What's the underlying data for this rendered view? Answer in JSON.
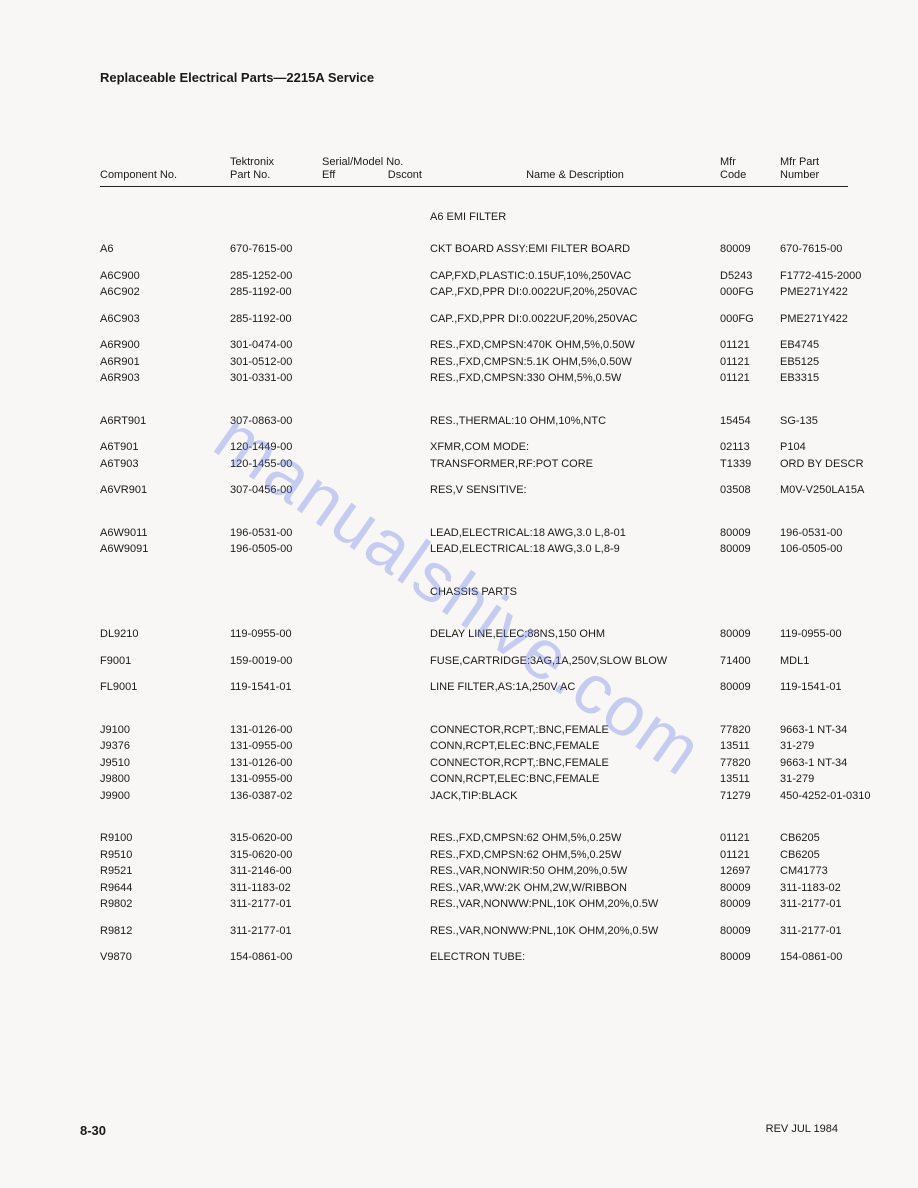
{
  "page": {
    "title": "Replaceable Electrical Parts—2215A Service",
    "page_number": "8-30",
    "revision": "REV JUL 1984",
    "watermark": "manualshive.com"
  },
  "headers": {
    "component": "Component No.",
    "tek_top": "Tektronix",
    "tek_bottom": "Part No.",
    "serial_top": "Serial/Model No.",
    "eff": "Eff",
    "dscont": "Dscont",
    "name": "Name & Description",
    "mfr_top": "Mfr",
    "mfr_bottom": "Code",
    "mpn": "Mfr Part Number"
  },
  "rows": [
    {
      "type": "spacer",
      "size": "md"
    },
    {
      "type": "section",
      "desc": "A6 EMI FILTER"
    },
    {
      "type": "spacer",
      "size": "md"
    },
    {
      "type": "part",
      "comp": "A6",
      "part": "670-7615-00",
      "desc": "CKT BOARD ASSY:EMI FILTER BOARD",
      "mfr": "80009",
      "mpn": "670-7615-00"
    },
    {
      "type": "spacer",
      "size": "sm"
    },
    {
      "type": "part",
      "comp": "A6C900",
      "part": "285-1252-00",
      "desc": "CAP,FXD,PLASTIC:0.15UF,10%,250VAC",
      "mfr": "D5243",
      "mpn": "F1772-415-2000"
    },
    {
      "type": "part",
      "comp": "A6C902",
      "part": "285-1192-00",
      "desc": "CAP.,FXD,PPR DI:0.0022UF,20%,250VAC",
      "mfr": "000FG",
      "mpn": "PME271Y422"
    },
    {
      "type": "spacer",
      "size": "sm"
    },
    {
      "type": "part",
      "comp": "A6C903",
      "part": "285-1192-00",
      "desc": "CAP.,FXD,PPR DI:0.0022UF,20%,250VAC",
      "mfr": "000FG",
      "mpn": "PME271Y422"
    },
    {
      "type": "spacer",
      "size": "sm"
    },
    {
      "type": "part",
      "comp": "A6R900",
      "part": "301-0474-00",
      "desc": "RES.,FXD,CMPSN:470K OHM,5%,0.50W",
      "mfr": "01121",
      "mpn": "EB4745"
    },
    {
      "type": "part",
      "comp": "A6R901",
      "part": "301-0512-00",
      "desc": "RES.,FXD,CMPSN:5.1K OHM,5%,0.50W",
      "mfr": "01121",
      "mpn": "EB5125"
    },
    {
      "type": "part",
      "comp": "A6R903",
      "part": "301-0331-00",
      "desc": "RES.,FXD,CMPSN:330 OHM,5%,0.5W",
      "mfr": "01121",
      "mpn": "EB3315"
    },
    {
      "type": "spacer",
      "size": "lg"
    },
    {
      "type": "part",
      "comp": "A6RT901",
      "part": "307-0863-00",
      "desc": "RES.,THERMAL:10 OHM,10%,NTC",
      "mfr": "15454",
      "mpn": "SG-135"
    },
    {
      "type": "spacer",
      "size": "sm"
    },
    {
      "type": "part",
      "comp": "A6T901",
      "part": "120-1449-00",
      "desc": "XFMR,COM MODE:",
      "mfr": "02113",
      "mpn": "P104"
    },
    {
      "type": "part",
      "comp": "A6T903",
      "part": "120-1455-00",
      "desc": "TRANSFORMER,RF:POT CORE",
      "mfr": "T1339",
      "mpn": "ORD BY DESCR"
    },
    {
      "type": "spacer",
      "size": "sm"
    },
    {
      "type": "part",
      "comp": "A6VR901",
      "part": "307-0456-00",
      "desc": "RES,V SENSITIVE:",
      "mfr": "03508",
      "mpn": "M0V-V250LA15A"
    },
    {
      "type": "spacer",
      "size": "lg"
    },
    {
      "type": "part",
      "comp": "A6W9011",
      "part": "196-0531-00",
      "desc": "LEAD,ELECTRICAL:18 AWG,3.0 L,8-01",
      "mfr": "80009",
      "mpn": "196-0531-00"
    },
    {
      "type": "part",
      "comp": "A6W9091",
      "part": "196-0505-00",
      "desc": "LEAD,ELECTRICAL:18 AWG,3.0 L,8-9",
      "mfr": "80009",
      "mpn": "106-0505-00"
    },
    {
      "type": "spacer",
      "size": "lg"
    },
    {
      "type": "section",
      "desc": "CHASSIS PARTS"
    },
    {
      "type": "spacer",
      "size": "lg"
    },
    {
      "type": "part",
      "comp": "DL9210",
      "part": "119-0955-00",
      "desc": "DELAY LINE,ELEC:88NS,150 OHM",
      "mfr": "80009",
      "mpn": "119-0955-00"
    },
    {
      "type": "spacer",
      "size": "sm"
    },
    {
      "type": "part",
      "comp": "F9001",
      "part": "159-0019-00",
      "desc": "FUSE,CARTRIDGE:3AG,1A,250V,SLOW BLOW",
      "mfr": "71400",
      "mpn": "MDL1"
    },
    {
      "type": "spacer",
      "size": "sm"
    },
    {
      "type": "part",
      "comp": "FL9001",
      "part": "119-1541-01",
      "desc": "LINE FILTER,AS:1A,250V AC",
      "mfr": "80009",
      "mpn": "119-1541-01"
    },
    {
      "type": "spacer",
      "size": "lg"
    },
    {
      "type": "part",
      "comp": "J9100",
      "part": "131-0126-00",
      "desc": "CONNECTOR,RCPT,:BNC,FEMALE",
      "mfr": "77820",
      "mpn": "9663-1 NT-34"
    },
    {
      "type": "part",
      "comp": "J9376",
      "part": "131-0955-00",
      "desc": "CONN,RCPT,ELEC:BNC,FEMALE",
      "mfr": "13511",
      "mpn": "31-279"
    },
    {
      "type": "part",
      "comp": "J9510",
      "part": "131-0126-00",
      "desc": "CONNECTOR,RCPT,:BNC,FEMALE",
      "mfr": "77820",
      "mpn": "9663-1 NT-34"
    },
    {
      "type": "part",
      "comp": "J9800",
      "part": "131-0955-00",
      "desc": "CONN,RCPT,ELEC:BNC,FEMALE",
      "mfr": "13511",
      "mpn": "31-279"
    },
    {
      "type": "part",
      "comp": "J9900",
      "part": "136-0387-02",
      "desc": "JACK,TIP:BLACK",
      "mfr": "71279",
      "mpn": "450-4252-01-0310"
    },
    {
      "type": "spacer",
      "size": "lg"
    },
    {
      "type": "part",
      "comp": "R9100",
      "part": "315-0620-00",
      "desc": "RES.,FXD,CMPSN:62 OHM,5%,0.25W",
      "mfr": "01121",
      "mpn": "CB6205"
    },
    {
      "type": "part",
      "comp": "R9510",
      "part": "315-0620-00",
      "desc": "RES.,FXD,CMPSN:62 OHM,5%,0.25W",
      "mfr": "01121",
      "mpn": "CB6205"
    },
    {
      "type": "part",
      "comp": "R9521",
      "part": "311-2146-00",
      "desc": "RES.,VAR,NONWIR:50 OHM,20%,0.5W",
      "mfr": "12697",
      "mpn": "CM41773"
    },
    {
      "type": "part",
      "comp": "R9644",
      "part": "311-1183-02",
      "desc": "RES.,VAR,WW:2K OHM,2W,W/RIBBON",
      "mfr": "80009",
      "mpn": "311-1183-02"
    },
    {
      "type": "part",
      "comp": "R9802",
      "part": "311-2177-01",
      "desc": "RES.,VAR,NONWW:PNL,10K OHM,20%,0.5W",
      "mfr": "80009",
      "mpn": "311-2177-01"
    },
    {
      "type": "spacer",
      "size": "sm"
    },
    {
      "type": "part",
      "comp": "R9812",
      "part": "311-2177-01",
      "desc": "RES.,VAR,NONWW:PNL,10K OHM,20%,0.5W",
      "mfr": "80009",
      "mpn": "311-2177-01"
    },
    {
      "type": "spacer",
      "size": "sm"
    },
    {
      "type": "part",
      "comp": "V9870",
      "part": "154-0861-00",
      "desc": "ELECTRON TUBE:",
      "mfr": "80009",
      "mpn": "154-0861-00"
    }
  ]
}
